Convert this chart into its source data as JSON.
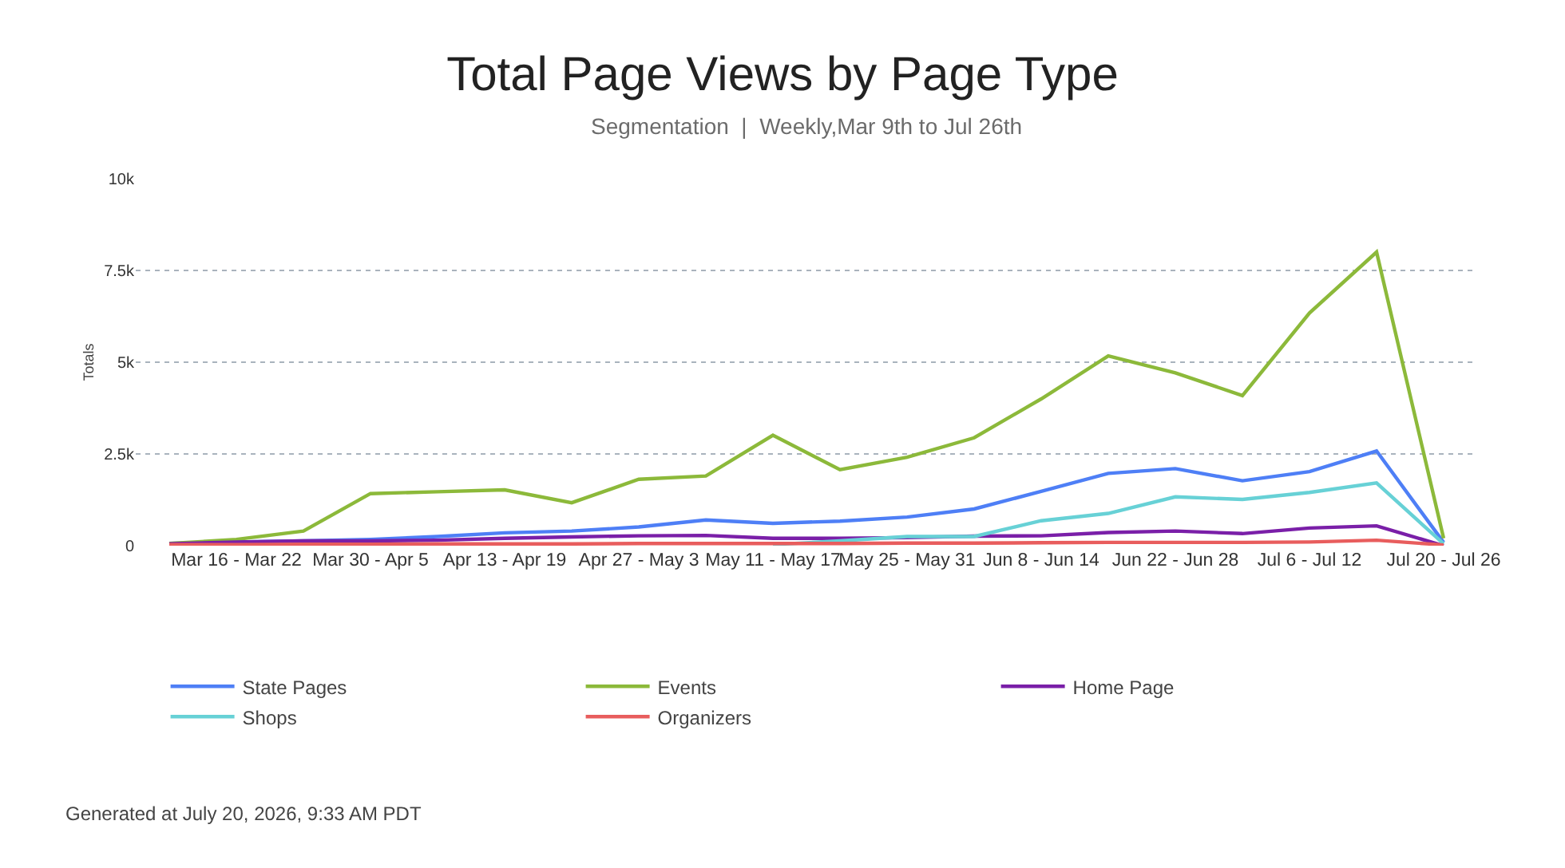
{
  "chart_data": {
    "type": "line",
    "title": "Total Page Views by Page Type",
    "subtitle": "Segmentation  |  Weekly,Mar 9th to Jul 26th",
    "ylabel": "Totals",
    "categories": [
      null,
      "Mar 16 - Mar 22",
      null,
      "Mar 30 - Apr 5",
      null,
      "Apr 13 - Apr 19",
      null,
      "Apr 27 - May 3",
      null,
      "May 11 - May 17",
      null,
      "May 25 - May 31",
      null,
      "Jun 8 - Jun 14",
      null,
      "Jun 22 - Jun 28",
      null,
      "Jul 6 - Jul 12",
      null,
      "Jul 20 - Jul 26"
    ],
    "series": [
      {
        "name": "State Pages",
        "color": "#4e7ff6",
        "values": [
          60,
          100,
          130,
          170,
          250,
          350,
          400,
          510,
          700,
          610,
          670,
          780,
          1000,
          1480,
          1970,
          2100,
          1770,
          2020,
          2580,
          90
        ]
      },
      {
        "name": "Events",
        "color": "#8cb93a",
        "values": [
          60,
          170,
          400,
          1420,
          1470,
          1520,
          1170,
          1810,
          1900,
          3010,
          2070,
          2410,
          2940,
          4000,
          5170,
          4710,
          4090,
          6340,
          8000,
          200
        ]
      },
      {
        "name": "Home Page",
        "color": "#7a1fa8",
        "values": [
          50,
          100,
          130,
          130,
          150,
          200,
          240,
          270,
          280,
          200,
          200,
          220,
          260,
          270,
          360,
          400,
          330,
          480,
          540,
          0
        ]
      },
      {
        "name": "Shops",
        "color": "#67d1d6",
        "values": [
          null,
          null,
          null,
          null,
          null,
          null,
          null,
          null,
          null,
          30,
          130,
          250,
          250,
          680,
          880,
          1330,
          1260,
          1450,
          1710,
          50
        ]
      },
      {
        "name": "Organizers",
        "color": "#e85d5d",
        "values": [
          30,
          30,
          40,
          40,
          50,
          50,
          50,
          60,
          60,
          60,
          60,
          70,
          70,
          80,
          90,
          90,
          90,
          100,
          150,
          20
        ]
      }
    ],
    "ylim": [
      0,
      10000
    ],
    "yticks": [
      0,
      {
        "value": 2500,
        "label": "2.5k"
      },
      {
        "value": 5000,
        "label": "5k"
      },
      {
        "value": 7500,
        "label": "7.5k"
      },
      {
        "value": 10000,
        "label": "10k"
      }
    ],
    "grid": "y",
    "legend": "bottom",
    "annotations": [
      "Generated at July 20, 2026, 9:33 AM PDT"
    ]
  }
}
